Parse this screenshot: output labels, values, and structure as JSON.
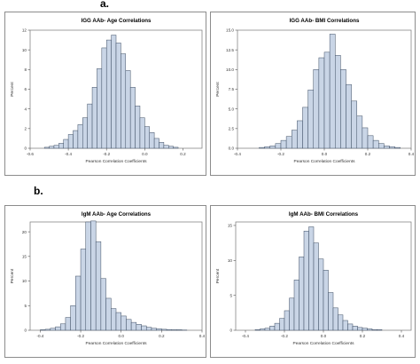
{
  "figure": {
    "section_labels": [
      "a.",
      "b."
    ]
  },
  "chart_data": [
    {
      "type": "bar",
      "title": "IGG AAb- Age Correlations",
      "xlabel": "Pearson Correlation Coefficients",
      "ylabel": "Percent",
      "xlim": [
        -0.6,
        0.3
      ],
      "ylim": [
        0,
        12
      ],
      "xticks": [
        "-0.6",
        "-0.4",
        "-0.2",
        "0.0",
        "0.2"
      ],
      "yticks": [
        "0",
        "2",
        "4",
        "6",
        "8",
        "10",
        "12"
      ],
      "bin_width": 0.025,
      "bin_start": -0.525,
      "values": [
        0.1,
        0.2,
        0.3,
        0.5,
        0.9,
        1.4,
        1.8,
        2.4,
        3.1,
        4.5,
        6.2,
        8.1,
        10.2,
        11.0,
        11.5,
        10.7,
        9.6,
        7.9,
        6.2,
        4.3,
        3.1,
        2.2,
        1.6,
        1.0,
        0.6,
        0.3,
        0.2,
        0.1
      ]
    },
    {
      "type": "bar",
      "title": "IGG AAb- BMI Correlations",
      "xlabel": "Pearson Correlation Coefficients",
      "ylabel": "Percent",
      "xlim": [
        -0.4,
        0.4
      ],
      "ylim": [
        0,
        15
      ],
      "xticks": [
        "-0.4",
        "-0.2",
        "0.0",
        "0.2",
        "0.4"
      ],
      "yticks": [
        "0.0",
        "2.5",
        "5.0",
        "7.5",
        "10.0",
        "12.5",
        "15.0"
      ],
      "bin_width": 0.025,
      "bin_start": -0.3,
      "values": [
        0.1,
        0.2,
        0.3,
        0.6,
        1.0,
        1.5,
        2.3,
        3.5,
        5.2,
        7.4,
        10.0,
        11.5,
        12.2,
        14.5,
        11.8,
        10.0,
        8.1,
        6.0,
        4.1,
        2.6,
        1.6,
        1.0,
        0.6,
        0.3,
        0.2,
        0.1
      ]
    },
    {
      "type": "bar",
      "title": "IgM AAb- Age Correlations",
      "xlabel": "Pearson Correlation Coefficients",
      "ylabel": "Percent",
      "xlim": [
        -0.45,
        0.4
      ],
      "ylim": [
        0,
        22
      ],
      "xticks": [
        "-0.4",
        "-0.2",
        "0.0",
        "0.2",
        "0.4"
      ],
      "yticks": [
        "0",
        "5",
        "10",
        "15",
        "20"
      ],
      "bin_width": 0.025,
      "bin_start": -0.4,
      "values": [
        0.1,
        0.2,
        0.4,
        0.7,
        1.3,
        2.6,
        5.0,
        11.0,
        16.5,
        22.0,
        22.2,
        18.0,
        10.5,
        6.5,
        4.4,
        3.6,
        2.9,
        2.2,
        1.6,
        1.2,
        0.9,
        0.6,
        0.4,
        0.3,
        0.2,
        0.15,
        0.1,
        0.1,
        0.05
      ]
    },
    {
      "type": "bar",
      "title": "IgM AAb- BMI Correlations",
      "xlabel": "Pearson Correlation Coefficients",
      "ylabel": "Percent",
      "xlim": [
        -0.45,
        0.45
      ],
      "ylim": [
        0,
        15.5
      ],
      "xticks": [
        "-0.4",
        "-0.2",
        "0.0",
        "0.2",
        "0.4"
      ],
      "yticks": [
        "0",
        "5",
        "10",
        "15"
      ],
      "bin_width": 0.025,
      "bin_start": -0.35,
      "values": [
        0.1,
        0.2,
        0.3,
        0.6,
        1.0,
        1.7,
        2.8,
        4.6,
        7.2,
        10.5,
        14.2,
        14.8,
        12.5,
        10.2,
        8.6,
        5.4,
        3.2,
        2.2,
        1.4,
        0.9,
        0.6,
        0.4,
        0.3,
        0.2,
        0.1,
        0.1
      ]
    }
  ]
}
